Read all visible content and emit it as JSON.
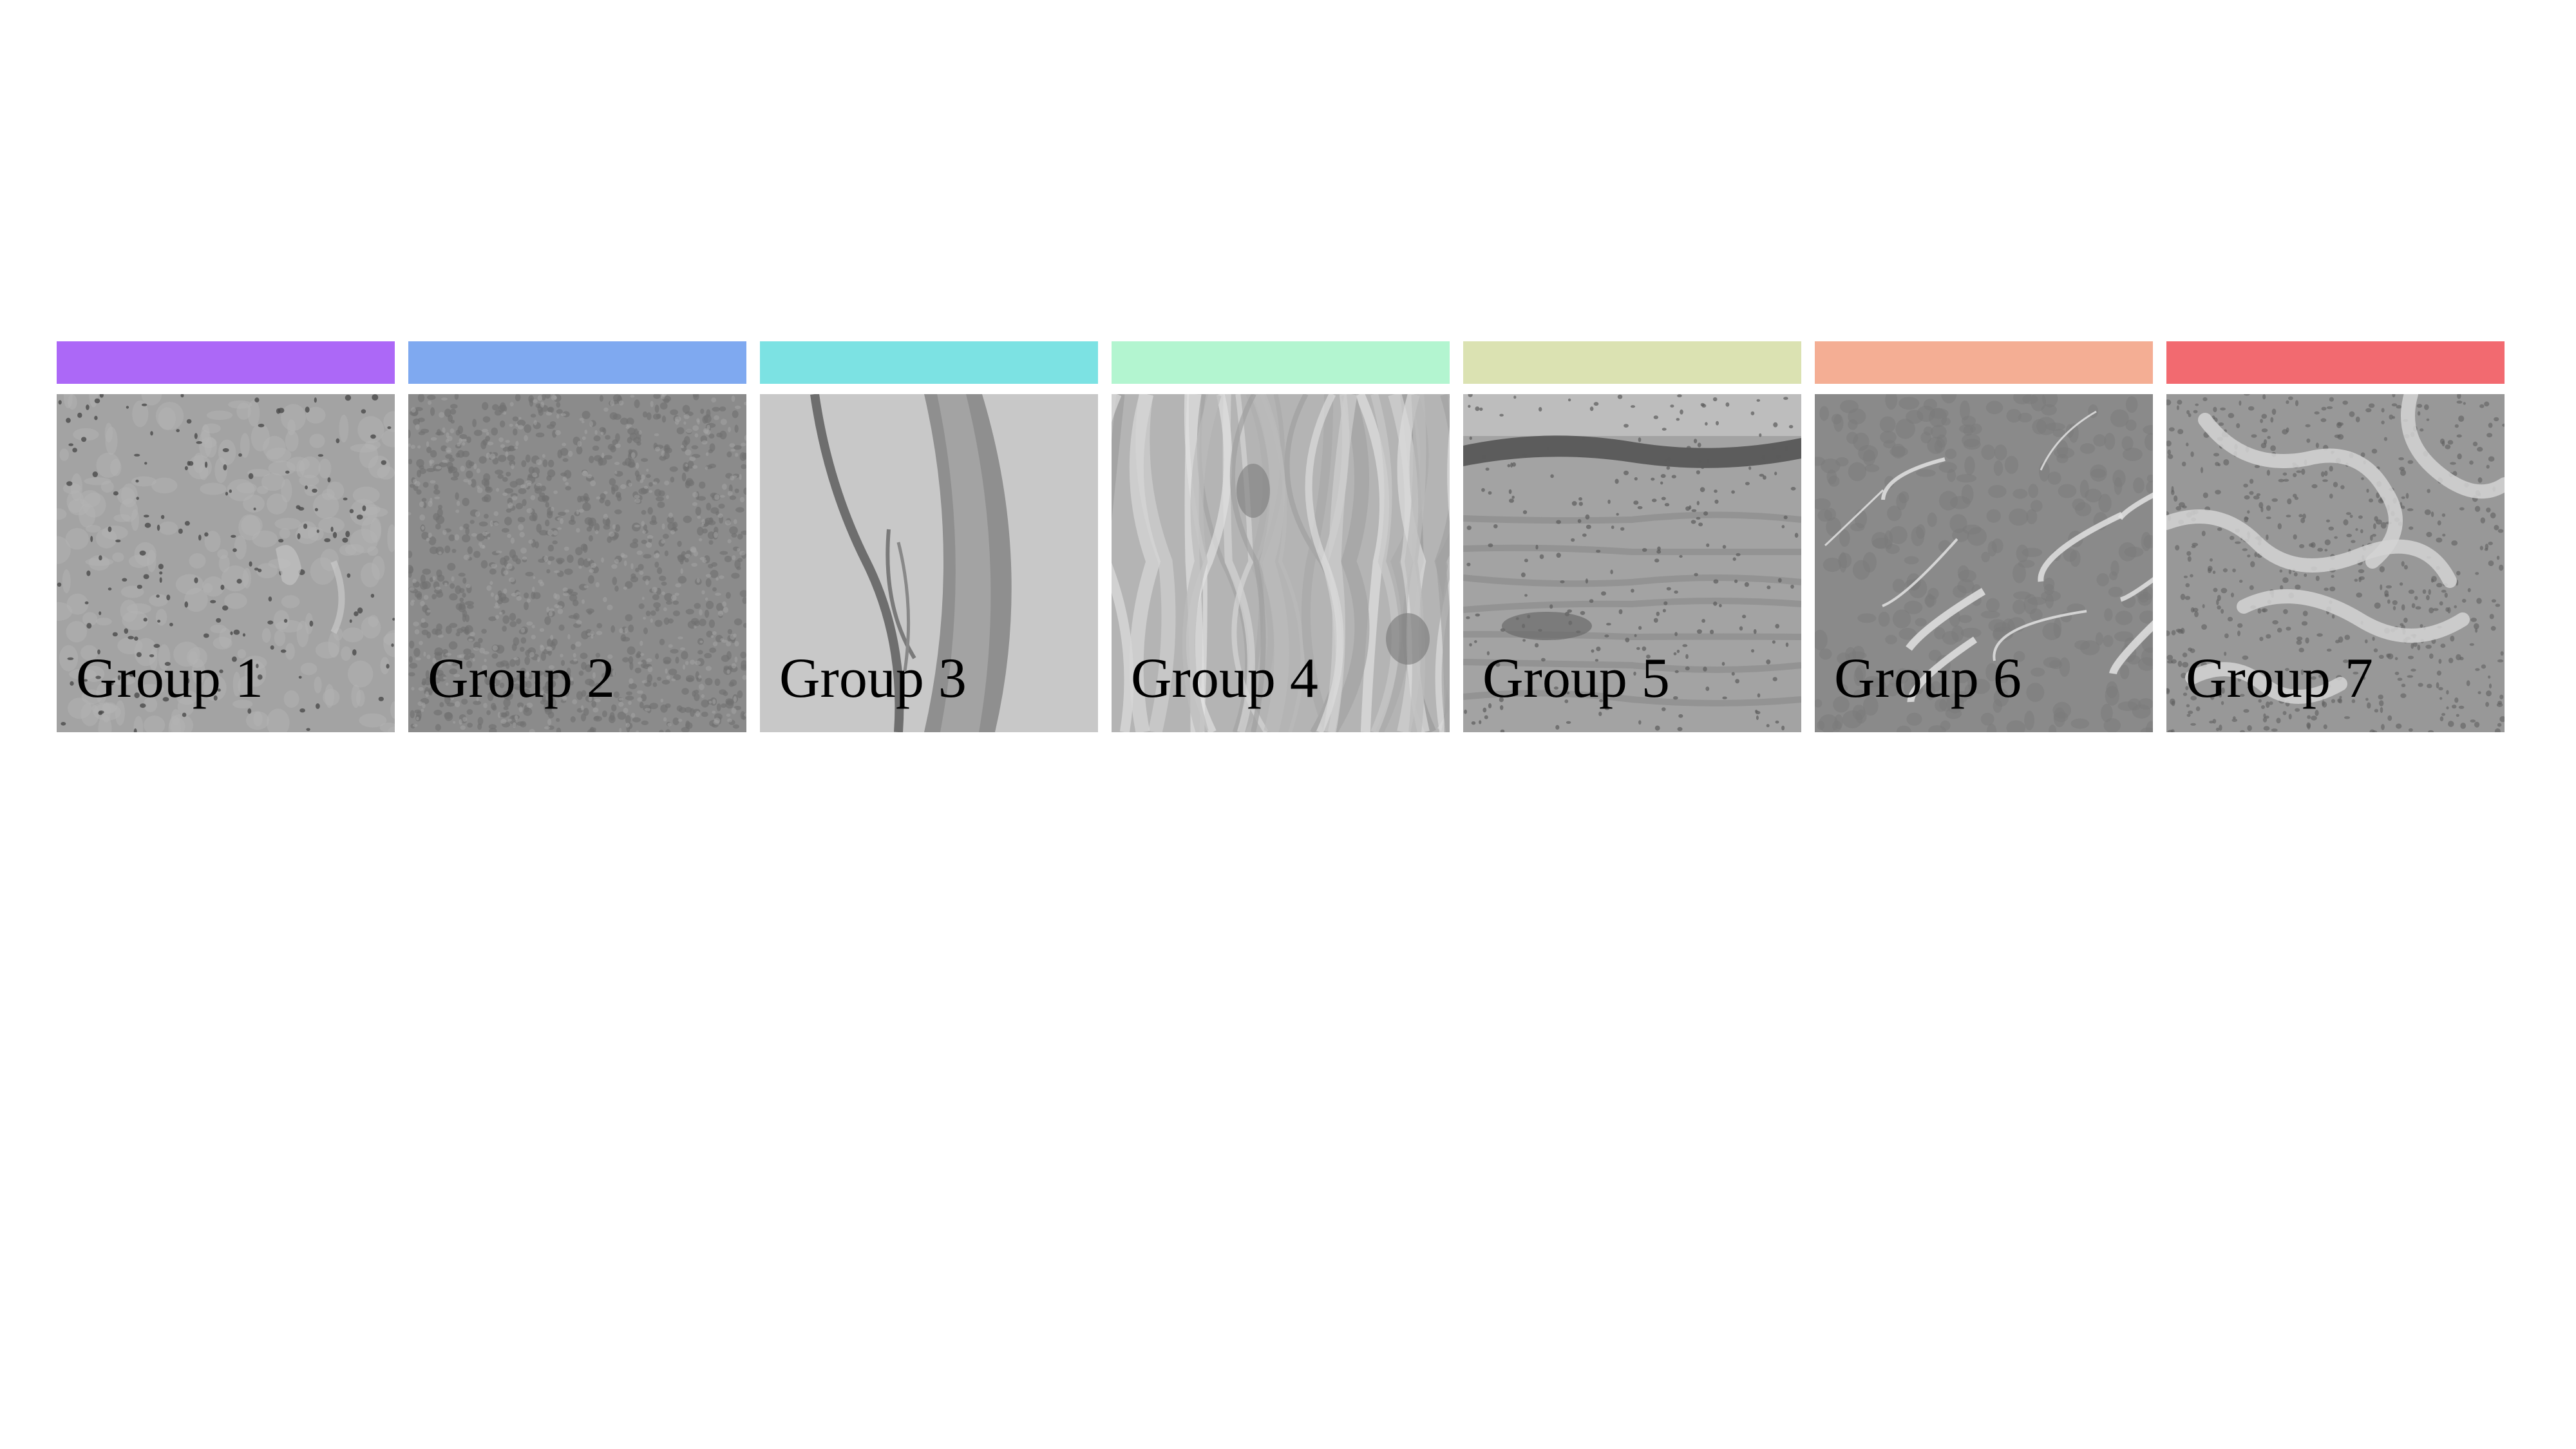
{
  "groups": [
    {
      "label": "Group 1",
      "color": "#ac68f7",
      "texture": "sparse-cell-tissue"
    },
    {
      "label": "Group 2",
      "color": "#7fa9f0",
      "texture": "dense-cell-tissue"
    },
    {
      "label": "Group 3",
      "color": "#7ce2e3",
      "texture": "thin-membrane-tissue"
    },
    {
      "label": "Group 4",
      "color": "#b3f5d0",
      "texture": "fibrous-tissue"
    },
    {
      "label": "Group 5",
      "color": "#dbe2b2",
      "texture": "epithelial-layer-tissue"
    },
    {
      "label": "Group 6",
      "color": "#f4ae94",
      "texture": "cracked-dense-tissue"
    },
    {
      "label": "Group 7",
      "color": "#f26a70",
      "texture": "lobular-tissue"
    }
  ]
}
